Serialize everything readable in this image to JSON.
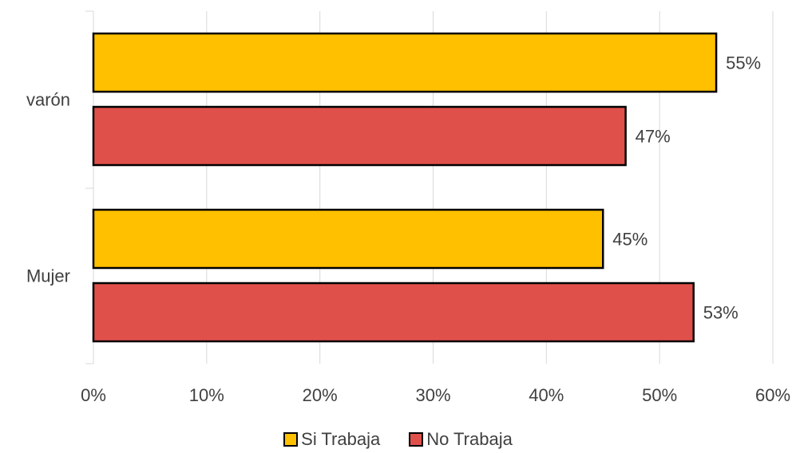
{
  "chart_data": {
    "type": "bar",
    "orientation": "horizontal",
    "categories": [
      "varón",
      "Mujer"
    ],
    "series": [
      {
        "name": "Si Trabaja",
        "values": [
          55,
          45
        ],
        "labels": [
          "55%",
          "45%"
        ],
        "color": "#FFC000"
      },
      {
        "name": "No Trabaja",
        "values": [
          47,
          53
        ],
        "labels": [
          "47%",
          "53%"
        ],
        "color": "#E0504B"
      }
    ],
    "xlim": [
      0,
      60
    ],
    "xticks": [
      0,
      10,
      20,
      30,
      40,
      50,
      60
    ],
    "xtick_labels": [
      "0%",
      "10%",
      "20%",
      "30%",
      "40%",
      "50%",
      "60%"
    ],
    "grid": true,
    "legend_position": "bottom"
  }
}
